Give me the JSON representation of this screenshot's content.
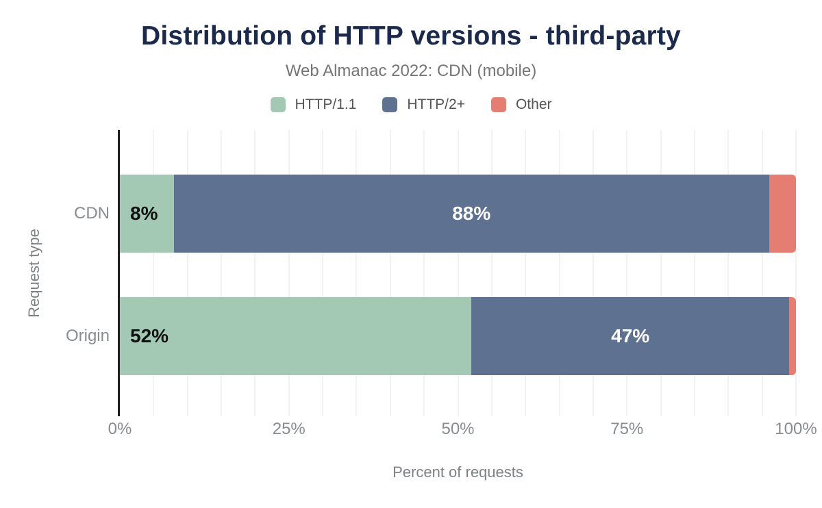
{
  "chart_data": {
    "type": "bar",
    "orientation": "horizontal",
    "stacked": true,
    "title": "Distribution of HTTP versions - third-party",
    "subtitle": "Web Almanac 2022: CDN (mobile)",
    "categories": [
      "CDN",
      "Origin"
    ],
    "series": [
      {
        "name": "HTTP/1.1",
        "color": "#a3c9b5",
        "values": [
          8,
          52
        ],
        "labels": [
          "8%",
          "52%"
        ],
        "label_color": "#111111",
        "label_align": "left"
      },
      {
        "name": "HTTP/2+",
        "color": "#5e7190",
        "values": [
          88,
          47
        ],
        "labels": [
          "88%",
          "47%"
        ],
        "label_color": "#ffffff",
        "label_align": "center"
      },
      {
        "name": "Other",
        "color": "#e57d72",
        "values": [
          4,
          1
        ],
        "labels": [
          "",
          ""
        ],
        "label_color": "#ffffff",
        "label_align": "center"
      }
    ],
    "xlabel": "Percent of requests",
    "ylabel": "Request type",
    "x_ticks": [
      "0%",
      "25%",
      "50%",
      "75%",
      "100%"
    ],
    "xlim": [
      0,
      100
    ],
    "grid": {
      "show": true,
      "minor_step_percent": 5
    },
    "legend_position": "top"
  },
  "colors": {
    "background": "#ffffff",
    "title": "#1b2a4a",
    "subtitle": "#757575",
    "legend_label": "#555555",
    "axis_line": "#1f1f1f",
    "gridline": "#f2f2f2",
    "tick_label": "#888c90",
    "axis_title": "#7d8185"
  }
}
